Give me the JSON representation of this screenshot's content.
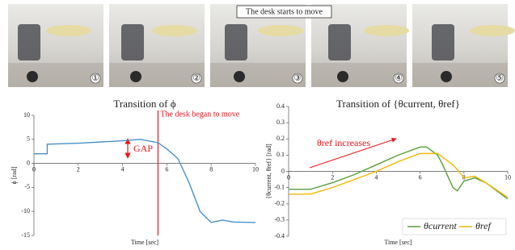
{
  "photos": {
    "caption": "The desk starts to move",
    "labels": [
      "①",
      "②",
      "③",
      "④",
      "⑤"
    ]
  },
  "chart_data": [
    {
      "type": "line",
      "title": "Transition of ϕ",
      "x_label": "Time [sec]",
      "y_label": "ϕ [rad]",
      "x": [
        0,
        0.6,
        0.6,
        2,
        4,
        4.8,
        5.6,
        6,
        6.5,
        7,
        7.5,
        8,
        8.5,
        9,
        10
      ],
      "series": [
        {
          "color": "#4a90c8",
          "values": [
            2,
            2,
            4,
            4.2,
            4.7,
            5,
            4.3,
            3,
            1,
            -4,
            -10,
            -12.3,
            -11.8,
            -12.2,
            -12.3
          ]
        }
      ],
      "xlim": [
        0,
        10
      ],
      "ylim": [
        -15,
        10
      ],
      "xticks": [
        0,
        2,
        4,
        6,
        8,
        10
      ],
      "yticks": [
        -15,
        -10,
        -5,
        0,
        5,
        10
      ],
      "vline": {
        "x": 5.6,
        "label": "The desk began to move",
        "color": "#e8161b"
      },
      "annotation": "GAP"
    },
    {
      "type": "line",
      "title": "Transition of {θcurrent, θref}",
      "x_label": "Time [sec]",
      "y_label": "{θcurrent, θref} [rad]",
      "x": [
        0,
        1,
        2,
        3,
        4,
        5,
        6,
        6.3,
        6.8,
        7,
        7.5,
        7.7,
        8,
        8.5,
        9,
        10
      ],
      "series": [
        {
          "name": "θcurrent",
          "color": "#5b9e3a",
          "values": [
            -0.11,
            -0.11,
            -0.07,
            -0.02,
            0.04,
            0.1,
            0.15,
            0.15,
            0.1,
            0.05,
            -0.1,
            -0.12,
            -0.06,
            -0.04,
            -0.07,
            -0.17
          ]
        },
        {
          "name": "θref",
          "color": "#f2b705",
          "values": [
            -0.14,
            -0.14,
            -0.1,
            -0.05,
            0,
            0.06,
            0.11,
            0.11,
            0.11,
            0.09,
            0.04,
            0.01,
            -0.04,
            -0.03,
            -0.07,
            -0.16
          ]
        }
      ],
      "xlim": [
        0,
        10
      ],
      "ylim": [
        -0.4,
        0.4
      ],
      "xticks": [
        0,
        2,
        4,
        6,
        8,
        10
      ],
      "yticks": [
        -0.4,
        -0.3,
        -0.2,
        -0.1,
        0,
        0.1,
        0.2,
        0.3,
        0.4
      ],
      "legend": "lower right",
      "annotation": "θref increases"
    }
  ]
}
